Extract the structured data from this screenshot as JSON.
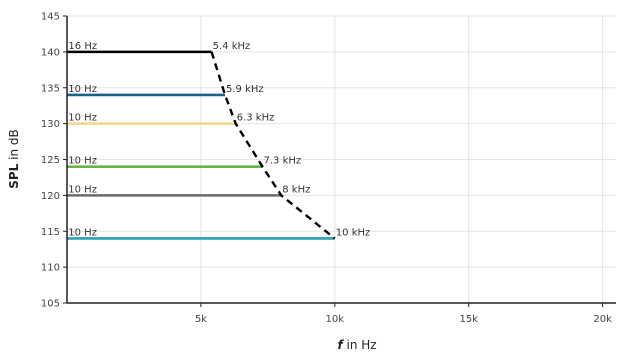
{
  "chart_data": {
    "type": "line",
    "xlabel": "f in Hz",
    "xlabel_parts": {
      "symbol": "f",
      "rest": " in Hz"
    },
    "ylabel": "SPL in dB",
    "ylabel_parts": {
      "symbol": "SPL",
      "rest": " in dB"
    },
    "xlim": [
      0,
      20500
    ],
    "ylim": [
      105,
      145
    ],
    "xticks": [
      {
        "value": 5000,
        "label": "5k"
      },
      {
        "value": 10000,
        "label": "10k"
      },
      {
        "value": 15000,
        "label": "15k"
      },
      {
        "value": 20000,
        "label": "20k"
      }
    ],
    "yticks": [
      105,
      110,
      115,
      120,
      125,
      130,
      135,
      140,
      145
    ],
    "grid": true,
    "series": [
      {
        "start_label": "16 Hz",
        "end_label": "5.4 kHz",
        "x": [
          16,
          5400
        ],
        "y": [
          140,
          140
        ],
        "color": "#000000"
      },
      {
        "start_label": "10 Hz",
        "end_label": "5.9 kHz",
        "x": [
          10,
          5900
        ],
        "y": [
          134,
          134
        ],
        "color": "#1b5f8c"
      },
      {
        "start_label": "10 Hz",
        "end_label": "6.3 kHz",
        "x": [
          10,
          6300
        ],
        "y": [
          130,
          130
        ],
        "color": "#f7d488"
      },
      {
        "start_label": "10 Hz",
        "end_label": "7.3 kHz",
        "x": [
          10,
          7300
        ],
        "y": [
          124,
          124
        ],
        "color": "#6ab446"
      },
      {
        "start_label": "10 Hz",
        "end_label": "8 kHz",
        "x": [
          10,
          8000
        ],
        "y": [
          120,
          120
        ],
        "color": "#6b6b6b"
      },
      {
        "start_label": "10 Hz",
        "end_label": "10 kHz",
        "x": [
          10,
          10000
        ],
        "y": [
          114,
          114
        ],
        "color": "#2a9fb5"
      }
    ],
    "envelope": {
      "style": "dashed",
      "color": "#000000",
      "x": [
        5400,
        5900,
        6300,
        7300,
        8000,
        10000
      ],
      "y": [
        140,
        134,
        130,
        124,
        120,
        114
      ]
    }
  }
}
